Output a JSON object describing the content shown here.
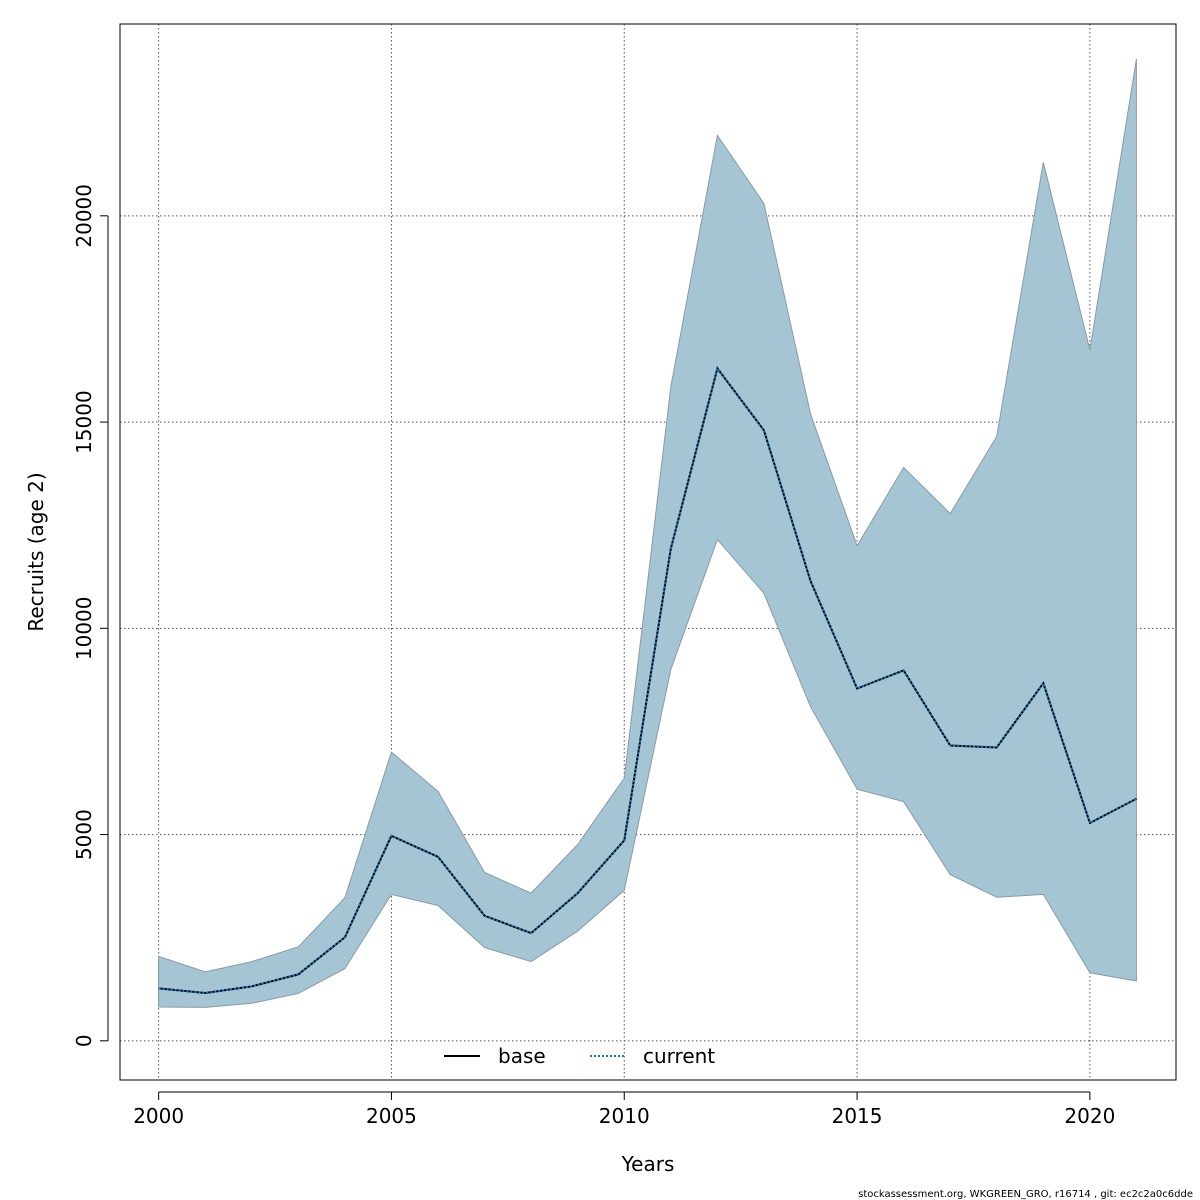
{
  "chart_data": {
    "type": "area",
    "xlabel": "Years",
    "ylabel": "Recruits (age 2)",
    "xlim": [
      1999.17,
      2021.85
    ],
    "ylim": [
      -950,
      24650
    ],
    "xticks": [
      2000,
      2005,
      2010,
      2015,
      2020
    ],
    "yticks": [
      0,
      5000,
      10000,
      15000,
      20000
    ],
    "grid": true,
    "legend_position": "bottom-center",
    "x": [
      2000,
      2001,
      2002,
      2003,
      2004,
      2005,
      2006,
      2007,
      2008,
      2009,
      2010,
      2011,
      2012,
      2013,
      2014,
      2015,
      2016,
      2017,
      2018,
      2019,
      2020,
      2021
    ],
    "band": {
      "lower": [
        820,
        810,
        910,
        1150,
        1750,
        3550,
        3280,
        2260,
        1920,
        2660,
        3650,
        9000,
        12150,
        10850,
        8100,
        6100,
        5800,
        4030,
        3480,
        3550,
        1650,
        1450
      ],
      "upper": [
        2050,
        1670,
        1920,
        2280,
        3470,
        7000,
        6050,
        4080,
        3580,
        4760,
        6370,
        15850,
        21950,
        20300,
        15200,
        12000,
        13900,
        12780,
        14650,
        21300,
        16750,
        23800
      ],
      "color": "#a5c4d4",
      "edge_color": "#8a9aa5"
    },
    "series": [
      {
        "name": "base",
        "line_style": "solid",
        "color": "#000000",
        "values": [
          1270,
          1160,
          1320,
          1610,
          2510,
          4970,
          4460,
          3030,
          2610,
          3580,
          4860,
          11930,
          16300,
          14800,
          11150,
          8540,
          8980,
          7160,
          7110,
          8670,
          5280,
          5870
        ]
      },
      {
        "name": "current",
        "line_style": "dotted",
        "color": "#1f78b4",
        "values": [
          1270,
          1160,
          1320,
          1610,
          2510,
          4970,
          4460,
          3030,
          2610,
          3580,
          4860,
          11930,
          16300,
          14800,
          11150,
          8540,
          8980,
          7160,
          7110,
          8670,
          5280,
          5870
        ]
      }
    ]
  },
  "footer": "stockassessment.org, WKGREEN_GRO, r16714 , git: ec2c2a0c6dde"
}
